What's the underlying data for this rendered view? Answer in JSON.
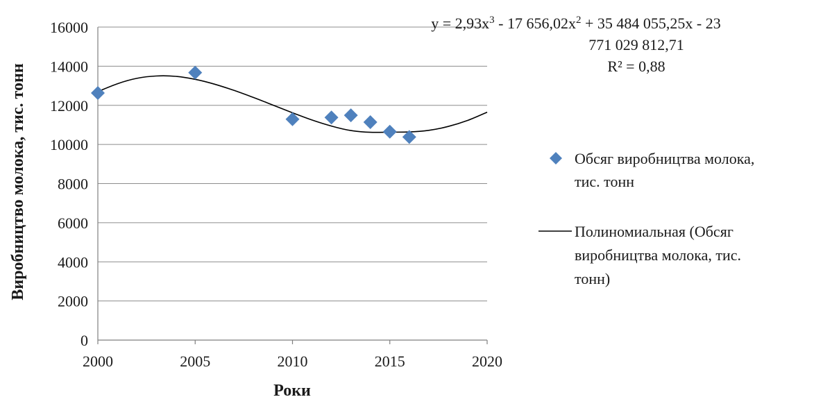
{
  "chart_data": {
    "type": "scatter",
    "xlabel": "Роки",
    "ylabel": "Виробництво молока, тис. тонн",
    "xlim": [
      2000,
      2020
    ],
    "ylim": [
      0,
      16000
    ],
    "x_ticks": [
      "2000",
      "2005",
      "2010",
      "2015",
      "2020"
    ],
    "y_ticks": [
      "0",
      "2000",
      "4000",
      "6000",
      "8000",
      "10000",
      "12000",
      "14000",
      "16000"
    ],
    "grid": "horizontal",
    "legend_position": "right",
    "series": [
      {
        "name": "Обсяг виробництва молока, тис. тонн",
        "marker": "diamond",
        "color": "#4f81bd",
        "x": [
          2000,
          2005,
          2010,
          2012,
          2013,
          2014,
          2015,
          2016
        ],
        "y": [
          12630,
          13670,
          11290,
          11380,
          11490,
          11140,
          10650,
          10380
        ]
      }
    ],
    "trendline": {
      "name": "Полиномиальная (Обсяг виробництва молока, тис. тонн)",
      "color": "#000000",
      "x": [
        2000,
        2001,
        2002,
        2003,
        2004,
        2005,
        2006,
        2007,
        2008,
        2009,
        2010,
        2011,
        2012,
        2013,
        2014,
        2015,
        2016,
        2017,
        2018,
        2019,
        2020
      ],
      "y": [
        12700,
        13100,
        13380,
        13500,
        13480,
        13330,
        13080,
        12760,
        12400,
        12010,
        11620,
        11250,
        10940,
        10710,
        10620,
        10630,
        10640,
        10720,
        10920,
        11230,
        11650
      ]
    },
    "equation_lines": [
      "771 029 812,71"
    ],
    "r_squared": "R² = 0,88"
  },
  "equation": {
    "prefix": "y = 2,93x",
    "exp1": "3",
    "mid1": " - 17 656,02x",
    "exp2": "2",
    "tail": " + 35 484 055,25x - 23"
  }
}
